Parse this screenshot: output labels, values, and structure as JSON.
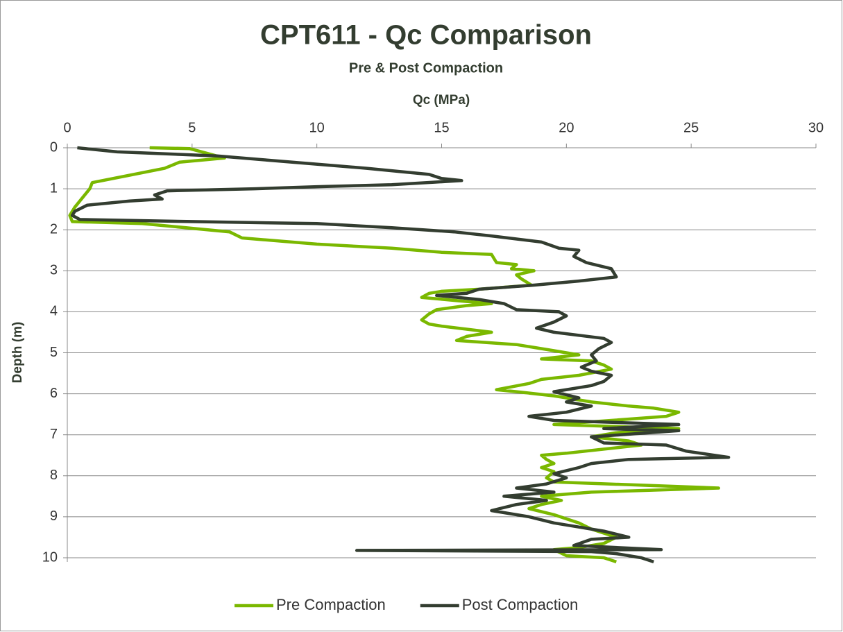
{
  "chart_data": {
    "type": "line",
    "title": "CPT611 - Qc Comparison",
    "subtitle": "Pre & Post Compaction",
    "x_label": "Qc (MPa)",
    "y_label": "Depth (m)",
    "xlim": [
      0,
      30
    ],
    "xticks": [
      0,
      5,
      10,
      15,
      20,
      25,
      30
    ],
    "ylim": [
      0,
      10
    ],
    "yticks": [
      0,
      1,
      2,
      3,
      4,
      5,
      6,
      7,
      8,
      9,
      10
    ],
    "y_inverted": true,
    "x_axis_position": "top",
    "grid": true,
    "legend": "bottom",
    "series": [
      {
        "name": "Pre Compaction",
        "color": "#7ab800",
        "x": [
          3.3,
          4.9,
          6.3,
          4.5,
          3.9,
          1.0,
          0.9,
          0.5,
          0.3,
          0.1,
          0.2,
          3.0,
          6.5,
          7.0,
          10,
          13,
          15,
          17,
          17.2,
          18,
          17.8,
          18.7,
          18.0,
          18.2,
          18.6,
          16.5,
          15,
          14.5,
          14.2,
          16,
          17,
          16,
          14.8,
          14.5,
          14.2,
          14.5,
          15,
          17,
          16,
          15.6,
          16.8,
          18,
          19.5,
          20.5,
          19,
          21,
          21.5,
          21.8,
          20.5,
          19,
          18.5,
          17.2,
          18,
          19.5,
          21,
          22.5,
          23.5,
          24.5,
          24,
          21.8,
          19.5,
          24.5,
          22,
          21,
          22.5,
          23,
          21.5,
          20,
          19,
          19.2,
          19.5,
          19,
          19.5,
          19.2,
          19.5,
          26.1,
          21,
          19,
          19.8,
          19,
          18.5,
          19.5,
          20,
          20.5,
          21,
          21.5,
          22,
          21.5,
          21,
          20.5,
          19.5,
          20,
          21.5,
          22
        ],
        "y": [
          0,
          0.02,
          0.25,
          0.35,
          0.5,
          0.85,
          1.0,
          1.3,
          1.45,
          1.65,
          1.8,
          1.85,
          2.05,
          2.2,
          2.35,
          2.45,
          2.55,
          2.6,
          2.8,
          2.85,
          2.95,
          3.0,
          3.1,
          3.2,
          3.35,
          3.45,
          3.5,
          3.55,
          3.65,
          3.75,
          3.8,
          3.85,
          3.95,
          4.05,
          4.2,
          4.3,
          4.35,
          4.5,
          4.6,
          4.7,
          4.75,
          4.8,
          4.95,
          5.05,
          5.15,
          5.2,
          5.3,
          5.4,
          5.55,
          5.65,
          5.75,
          5.9,
          5.95,
          6.05,
          6.2,
          6.3,
          6.35,
          6.45,
          6.55,
          6.65,
          6.75,
          6.85,
          6.95,
          7.05,
          7.15,
          7.25,
          7.35,
          7.45,
          7.5,
          7.6,
          7.7,
          7.8,
          7.9,
          8.05,
          8.15,
          8.3,
          8.4,
          8.5,
          8.6,
          8.7,
          8.8,
          8.95,
          9.05,
          9.15,
          9.3,
          9.4,
          9.5,
          9.65,
          9.7,
          9.75,
          9.8,
          9.95,
          10.0,
          10.1
        ]
      },
      {
        "name": "Post Compaction",
        "color": "#333d30",
        "x": [
          0.4,
          2,
          6,
          8,
          11,
          12,
          14.5,
          15,
          15.8,
          13,
          10,
          7.5,
          4,
          3.5,
          3.8,
          2.5,
          0.8,
          0.3,
          0.2,
          0.5,
          5,
          10,
          13,
          15.5,
          17,
          19,
          19.7,
          20.5,
          20.3,
          20.8,
          21.8,
          22,
          20.5,
          18.7,
          16.5,
          16,
          14.8,
          16.5,
          17.5,
          18,
          19.7,
          20,
          19.5,
          18.8,
          19.5,
          21.5,
          21.8,
          21.3,
          21.0,
          21.2,
          20.6,
          21.0,
          21.8,
          21.5,
          21.0,
          19.5,
          20.5,
          20,
          21,
          20,
          18.5,
          19.5,
          24.5,
          21.5,
          24.5,
          21,
          21.5,
          24,
          24.8,
          26.5,
          22.5,
          21,
          20.5,
          19.5,
          20,
          19.2,
          18,
          19.5,
          17.5,
          19.2,
          18,
          17,
          18.5,
          19.5,
          20.5,
          21.5,
          22.5,
          21,
          20.3,
          23.8,
          11.6,
          21,
          22,
          23,
          23.5
        ],
        "y": [
          0,
          0.1,
          0.2,
          0.3,
          0.45,
          0.5,
          0.65,
          0.75,
          0.8,
          0.9,
          0.95,
          1.0,
          1.05,
          1.15,
          1.25,
          1.3,
          1.4,
          1.55,
          1.65,
          1.75,
          1.8,
          1.85,
          1.95,
          2.05,
          2.15,
          2.3,
          2.45,
          2.5,
          2.65,
          2.8,
          2.95,
          3.15,
          3.25,
          3.35,
          3.45,
          3.55,
          3.6,
          3.7,
          3.8,
          3.95,
          4.0,
          4.1,
          4.25,
          4.4,
          4.5,
          4.65,
          4.75,
          4.9,
          5.05,
          5.2,
          5.35,
          5.45,
          5.55,
          5.7,
          5.8,
          5.95,
          6.1,
          6.2,
          6.3,
          6.45,
          6.55,
          6.65,
          6.75,
          6.85,
          6.9,
          7.05,
          7.2,
          7.25,
          7.4,
          7.55,
          7.6,
          7.7,
          7.8,
          7.95,
          8.05,
          8.2,
          8.3,
          8.4,
          8.5,
          8.6,
          8.7,
          8.85,
          9.0,
          9.15,
          9.25,
          9.35,
          9.5,
          9.55,
          9.7,
          9.8,
          9.82,
          9.85,
          9.9,
          10.0,
          10.1
        ]
      }
    ]
  }
}
